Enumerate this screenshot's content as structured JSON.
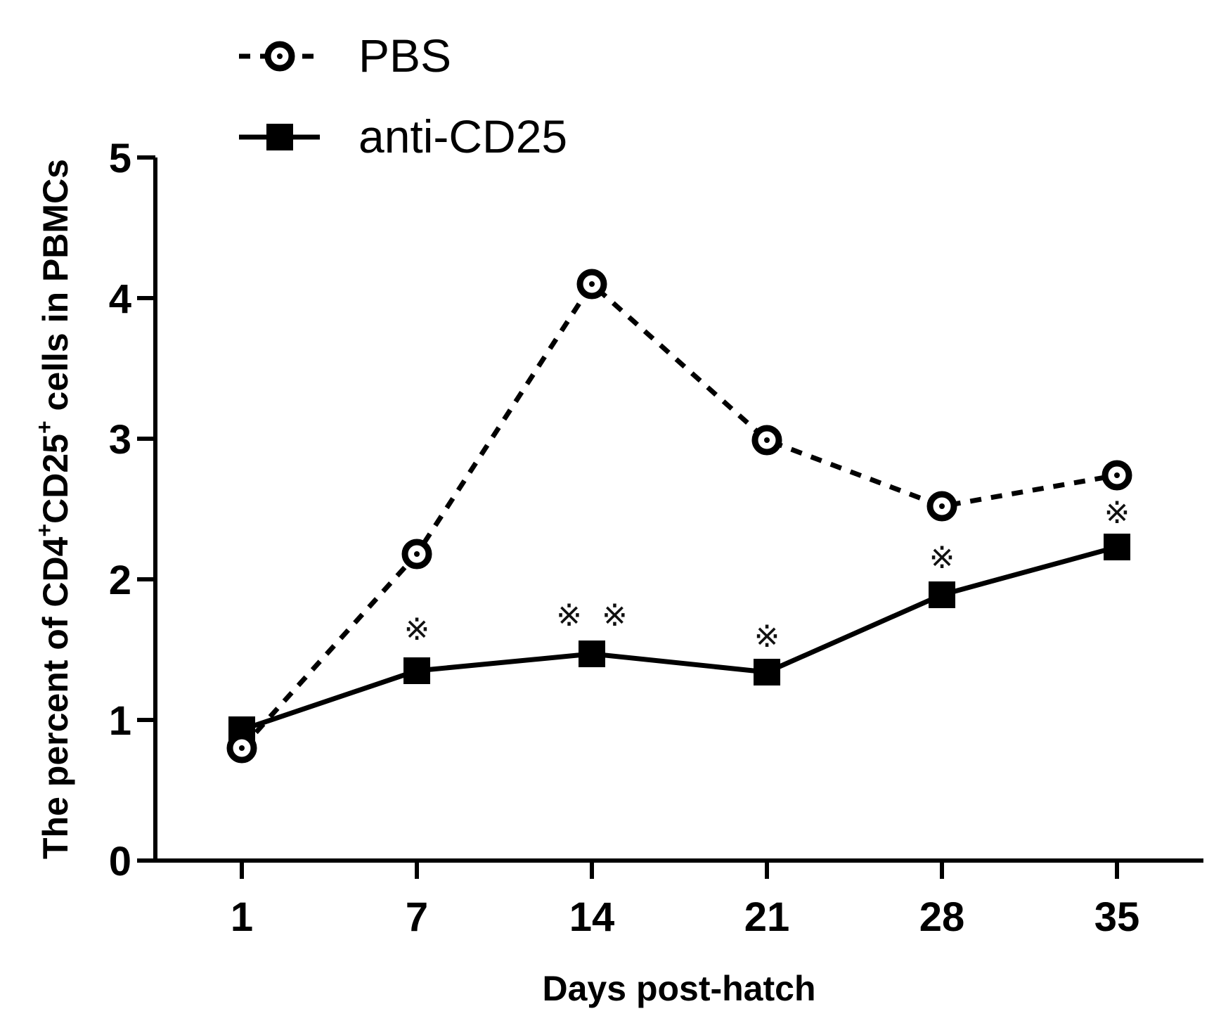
{
  "chart_data": {
    "type": "line",
    "title": "",
    "xlabel": "Days post-hatch",
    "ylabel": {
      "prefix": "The percent of CD4",
      "sup1": "+",
      "mid": "CD25",
      "sup2": "+",
      "suffix": " cells in PBMCs"
    },
    "categories": [
      "1",
      "7",
      "14",
      "21",
      "28",
      "35"
    ],
    "ylim": [
      0,
      5
    ],
    "yticks": [
      "0",
      "1",
      "2",
      "3",
      "4",
      "5"
    ],
    "grid": false,
    "legend_position": "top-left",
    "series": [
      {
        "name": "PBS",
        "line_style": "dashed",
        "marker": "open-circle",
        "color": "#000000",
        "values": [
          0.8,
          2.18,
          4.1,
          2.99,
          2.52,
          2.74
        ]
      },
      {
        "name": "anti-CD25",
        "line_style": "solid",
        "marker": "filled-square",
        "color": "#000000",
        "values": [
          0.93,
          1.35,
          1.47,
          1.34,
          1.89,
          2.23
        ]
      }
    ],
    "annotations": [
      {
        "category": "7",
        "text": "※",
        "y": 1.64
      },
      {
        "category": "14",
        "text": "※  ※",
        "y": 1.74
      },
      {
        "category": "21",
        "text": "※",
        "y": 1.59
      },
      {
        "category": "28",
        "text": "※",
        "y": 2.15
      },
      {
        "category": "35",
        "text": "※",
        "y": 2.47
      }
    ]
  }
}
